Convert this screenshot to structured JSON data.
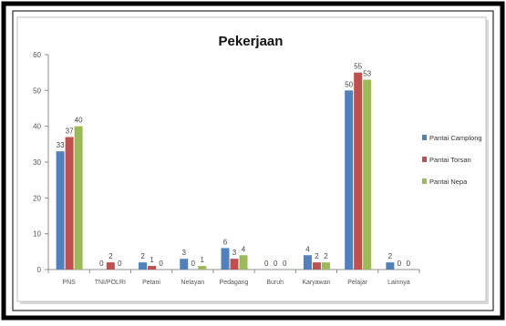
{
  "chart_data": {
    "type": "bar",
    "title": "Pekerjaan",
    "xlabel": "",
    "ylabel": "",
    "ylim": [
      0,
      60
    ],
    "yticks": [
      "0",
      "10",
      "20",
      "30",
      "40",
      "50",
      "60"
    ],
    "grid": false,
    "legend_position": "right",
    "categories": [
      "PNS",
      "TNI/POLRI",
      "Petani",
      "Nelayan",
      "Pedagang",
      "Buruh",
      "Karyawan",
      "Pelajar",
      "Lainnya"
    ],
    "series": [
      {
        "name": "Pantai Camplong",
        "color": "#4F81BD",
        "values": [
          33,
          0,
          2,
          3,
          6,
          0,
          4,
          50,
          2
        ]
      },
      {
        "name": "Pantai Torsan",
        "color": "#C0504D",
        "values": [
          37,
          2,
          1,
          0,
          3,
          0,
          2,
          55,
          0
        ]
      },
      {
        "name": "Pantai Nepa",
        "color": "#9BBB59",
        "values": [
          40,
          0,
          0,
          1,
          4,
          0,
          2,
          53,
          0
        ]
      }
    ]
  }
}
